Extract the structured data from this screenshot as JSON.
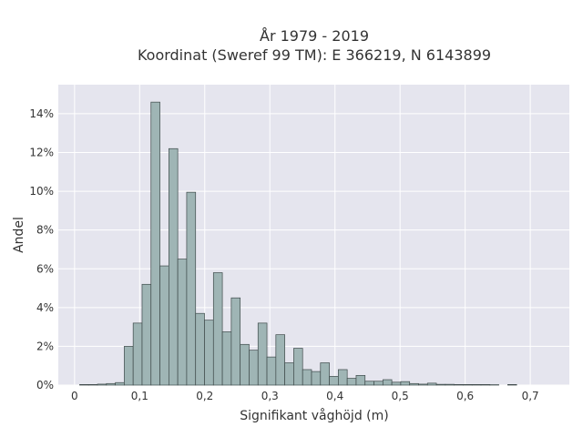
{
  "chart_data": {
    "type": "bar",
    "title_lines": [
      "År 1979 - 2019",
      "Koordinat (Sweref 99 TM): E 366219, N 6143899"
    ],
    "xlabel": "Signifikant våghöjd (m)",
    "ylabel": "Andel",
    "xlim": [
      -0.025,
      0.76
    ],
    "ylim": [
      0,
      15.5
    ],
    "x_ticks": [
      0,
      0.1,
      0.2,
      0.3,
      0.4,
      0.5,
      0.6,
      0.7
    ],
    "x_tick_labels": [
      "0",
      "0,1",
      "0,2",
      "0,3",
      "0,4",
      "0,5",
      "0,6",
      "0,7"
    ],
    "y_ticks": [
      0,
      2,
      4,
      6,
      8,
      10,
      12,
      14
    ],
    "y_tick_labels": [
      "0%",
      "2%",
      "4%",
      "6%",
      "8%",
      "10%",
      "12%",
      "14%"
    ],
    "grid": true,
    "bin_width": 0.0137,
    "bin_start": 0.0078,
    "values": [
      0.03,
      0.03,
      0.05,
      0.08,
      0.13,
      2.0,
      3.2,
      5.2,
      14.6,
      6.15,
      12.2,
      6.5,
      9.95,
      3.7,
      3.35,
      5.8,
      2.75,
      4.5,
      2.1,
      1.8,
      3.2,
      1.45,
      2.6,
      1.15,
      1.9,
      0.8,
      0.7,
      1.15,
      0.45,
      0.8,
      0.35,
      0.5,
      0.2,
      0.2,
      0.28,
      0.15,
      0.18,
      0.08,
      0.05,
      0.1,
      0.04,
      0.04,
      0.03,
      0.03,
      0.03,
      0.03,
      0.02,
      0.0,
      0.03,
      0.0
    ],
    "bar_color": "#9fb5b5",
    "bar_edge_color": "#3e4a4a",
    "plot_bg": "#e5e5ee",
    "grid_color": "#ffffff"
  }
}
